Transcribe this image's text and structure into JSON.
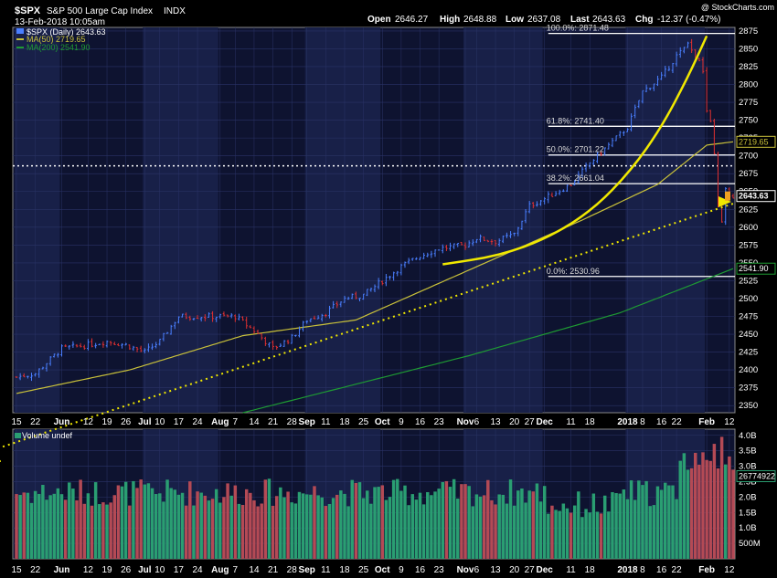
{
  "header": {
    "symbol": "$SPX",
    "name": "S&P 500 Large Cap Index",
    "exchange": "INDX",
    "date": "13-Feb-2018 10:05am",
    "watermark": "@ StockCharts.com",
    "open_label": "Open",
    "open": "2646.27",
    "high_label": "High",
    "high": "2648.88",
    "low_label": "Low",
    "low": "2637.08",
    "last_label": "Last",
    "last": "2643.63",
    "chg_label": "Chg",
    "chg": "-12.37 (-0.47%)"
  },
  "legend": {
    "price": "$SPX (Daily) 2643.63",
    "ma50": "MA(50) 2719.65",
    "ma200": "MA(200) 2541.90"
  },
  "fib_labels": [
    {
      "text": "100.0%: 2871.48",
      "value": 2871.48
    },
    {
      "text": "61.8%: 2741.40",
      "value": 2741.4
    },
    {
      "text": "50.0%: 2701.22",
      "value": 2701.22
    },
    {
      "text": "38.2%: 2661.04",
      "value": 2661.04
    },
    {
      "text": "0.0%: 2530.96",
      "value": 2530.96
    }
  ],
  "right_tags": {
    "ma50": {
      "text": "2719.65",
      "value": 2719.65
    },
    "last": {
      "text": "2643.63",
      "value": 2643.63
    },
    "ma200": {
      "text": "2541.90",
      "value": 2541.9
    },
    "volume": {
      "text": "26774922",
      "value": 26774922
    }
  },
  "volume_label": "Volume undef",
  "colors": {
    "background": "#000000",
    "panel": "#0e1330",
    "month_band": "#182048",
    "grid": "#2a3366",
    "up": "#4a7fff",
    "down": "#e03030",
    "ma50": "#c9c13a",
    "ma200": "#1e9b33",
    "trend": "#f0e800",
    "vol_up": "#2a9e72",
    "vol_down": "#b44a55",
    "fib": "#ffffff"
  },
  "chart_data": {
    "type": "candlestick",
    "price_axis": {
      "range": [
        2340,
        2880
      ],
      "ticks": [
        2350,
        2375,
        2400,
        2425,
        2450,
        2475,
        2500,
        2525,
        2550,
        2575,
        2600,
        2625,
        2650,
        2675,
        2700,
        2725,
        2750,
        2775,
        2800,
        2825,
        2850,
        2875
      ]
    },
    "volume_axis": {
      "range": [
        0,
        4200000000
      ],
      "ticks": [
        {
          "label": "4.0B",
          "value": 4000000000
        },
        {
          "label": "3.5B",
          "value": 3500000000
        },
        {
          "label": "3.0B",
          "value": 3000000000
        },
        {
          "label": "2.5B",
          "value": 2500000000
        },
        {
          "label": "2.0B",
          "value": 2000000000
        },
        {
          "label": "1.5B",
          "value": 1500000000
        },
        {
          "label": "1.0B",
          "value": 1000000000
        },
        {
          "label": "500M",
          "value": 500000000
        }
      ]
    },
    "x_labels": [
      {
        "label": "15",
        "idx": 0
      },
      {
        "label": "22",
        "idx": 5
      },
      {
        "label": "Jun",
        "idx": 12
      },
      {
        "label": "12",
        "idx": 19
      },
      {
        "label": "19",
        "idx": 24
      },
      {
        "label": "26",
        "idx": 29
      },
      {
        "label": "Jul",
        "idx": 34
      },
      {
        "label": "10",
        "idx": 38
      },
      {
        "label": "17",
        "idx": 43
      },
      {
        "label": "24",
        "idx": 48
      },
      {
        "label": "Aug",
        "idx": 54
      },
      {
        "label": "7",
        "idx": 58
      },
      {
        "label": "14",
        "idx": 63
      },
      {
        "label": "21",
        "idx": 68
      },
      {
        "label": "28",
        "idx": 73
      },
      {
        "label": "Sep",
        "idx": 77
      },
      {
        "label": "11",
        "idx": 82
      },
      {
        "label": "18",
        "idx": 87
      },
      {
        "label": "25",
        "idx": 92
      },
      {
        "label": "Oct",
        "idx": 97
      },
      {
        "label": "9",
        "idx": 102
      },
      {
        "label": "16",
        "idx": 107
      },
      {
        "label": "23",
        "idx": 112
      },
      {
        "label": "Nov",
        "idx": 119
      },
      {
        "label": "6",
        "idx": 122
      },
      {
        "label": "13",
        "idx": 127
      },
      {
        "label": "20",
        "idx": 132
      },
      {
        "label": "27",
        "idx": 136
      },
      {
        "label": "Dec",
        "idx": 140
      },
      {
        "label": "11",
        "idx": 147
      },
      {
        "label": "18",
        "idx": 152
      },
      {
        "label": "2018",
        "idx": 162
      },
      {
        "label": "8",
        "idx": 166
      },
      {
        "label": "16",
        "idx": 171
      },
      {
        "label": "22",
        "idx": 175
      },
      {
        "label": "Feb",
        "idx": 183
      },
      {
        "label": "12",
        "idx": 189
      }
    ],
    "month_bands": [
      [
        0,
        11
      ],
      [
        34,
        53
      ],
      [
        77,
        96
      ],
      [
        119,
        139
      ],
      [
        162,
        182
      ]
    ],
    "fib_levels": [
      2871.48,
      2741.4,
      2701.22,
      2661.04,
      2530.96
    ],
    "fib_start_idx": 141,
    "dotted_resistance": 2686,
    "trendline": [
      [
        -5,
        2290
      ],
      [
        190,
        2633
      ]
    ],
    "arc": [
      [
        113,
        2548
      ],
      [
        128,
        2560
      ],
      [
        141,
        2585
      ],
      [
        153,
        2625
      ],
      [
        163,
        2680
      ],
      [
        171,
        2740
      ],
      [
        178,
        2810
      ],
      [
        183,
        2868
      ]
    ],
    "anchors": {
      "idx": [
        0,
        5,
        12,
        19,
        24,
        29,
        34,
        38,
        43,
        48,
        54,
        58,
        63,
        68,
        73,
        77,
        82,
        87,
        92,
        97,
        102,
        107,
        112,
        119,
        122,
        127,
        132,
        136,
        140,
        147,
        152,
        162,
        166,
        171,
        175,
        178,
        180,
        182,
        183,
        184,
        185,
        186,
        187,
        188,
        189
      ],
      "close": [
        2390,
        2395,
        2430,
        2435,
        2440,
        2435,
        2425,
        2440,
        2475,
        2475,
        2475,
        2475,
        2455,
        2430,
        2445,
        2470,
        2480,
        2500,
        2505,
        2525,
        2545,
        2560,
        2570,
        2575,
        2585,
        2580,
        2590,
        2630,
        2640,
        2660,
        2690,
        2740,
        2790,
        2810,
        2840,
        2855,
        2840,
        2820,
        2763,
        2745,
        2700,
        2630,
        2605,
        2655,
        2640
      ]
    },
    "ma50": {
      "idx": [
        0,
        30,
        60,
        90,
        120,
        150,
        170,
        183,
        190
      ],
      "value": [
        2367,
        2400,
        2448,
        2470,
        2540,
        2610,
        2660,
        2715,
        2719.65
      ]
    },
    "ma200": {
      "idx": [
        60,
        120,
        160,
        190
      ],
      "value": [
        2340,
        2420,
        2480,
        2541.9
      ]
    }
  }
}
